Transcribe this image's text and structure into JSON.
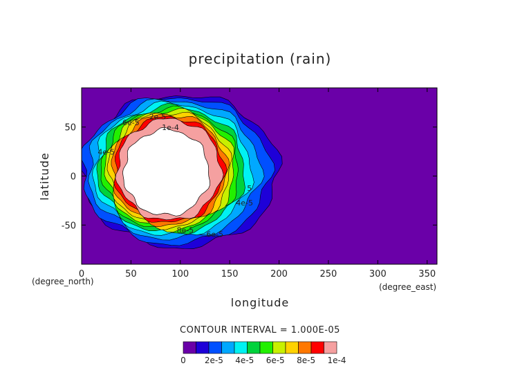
{
  "chart_data": {
    "type": "contour",
    "title": "precipitation (rain)",
    "xlabel": "longitude",
    "ylabel": "latitude",
    "x_unit": "(degree_east)",
    "y_unit": "(degree_north)",
    "xlim": [
      0,
      360
    ],
    "ylim": [
      -90,
      90
    ],
    "x_ticks": [
      0,
      50,
      100,
      150,
      200,
      250,
      300,
      350
    ],
    "y_ticks": [
      -50,
      0,
      50
    ],
    "grid": false,
    "contour_interval_text": "CONTOUR INTERVAL = 1.000E-05",
    "levels": [
      0,
      1e-05,
      2e-05,
      3e-05,
      4e-05,
      5e-05,
      6e-05,
      7e-05,
      8e-05,
      9e-05,
      0.0001
    ],
    "colorbar_colors": [
      "#6a00a8",
      "#1e00d8",
      "#0050ff",
      "#00a8ff",
      "#00f2f2",
      "#00d23c",
      "#22f000",
      "#c8f000",
      "#ffd200",
      "#ff7800",
      "#ff0000",
      "#f5a0a0"
    ],
    "colorbar_tick_labels": [
      "0",
      "2e-5",
      "4e-5",
      "6e-5",
      "8e-5",
      "1e-4"
    ],
    "feature": {
      "description": "ring of high precipitation",
      "center_lon": 95,
      "center_lat": 5,
      "lon_extent": [
        0,
        230
      ],
      "lat_extent": [
        -75,
        70
      ],
      "max_value": 0.0001
    },
    "contour_labels": [
      {
        "text": "2e-5",
        "lon": 77,
        "lat": 58
      },
      {
        "text": "6e-5",
        "lon": 50,
        "lat": 52
      },
      {
        "text": "1e-4",
        "lon": 90,
        "lat": 47
      },
      {
        "text": "4e-5",
        "lon": 25,
        "lat": 22
      },
      {
        "text": "4e-5",
        "lon": 165,
        "lat": -30
      },
      {
        "text": "5",
        "lon": 170,
        "lat": -15
      },
      {
        "text": "8e-5",
        "lon": 105,
        "lat": -58
      },
      {
        "text": "6e-5",
        "lon": 135,
        "lat": -62
      }
    ]
  }
}
